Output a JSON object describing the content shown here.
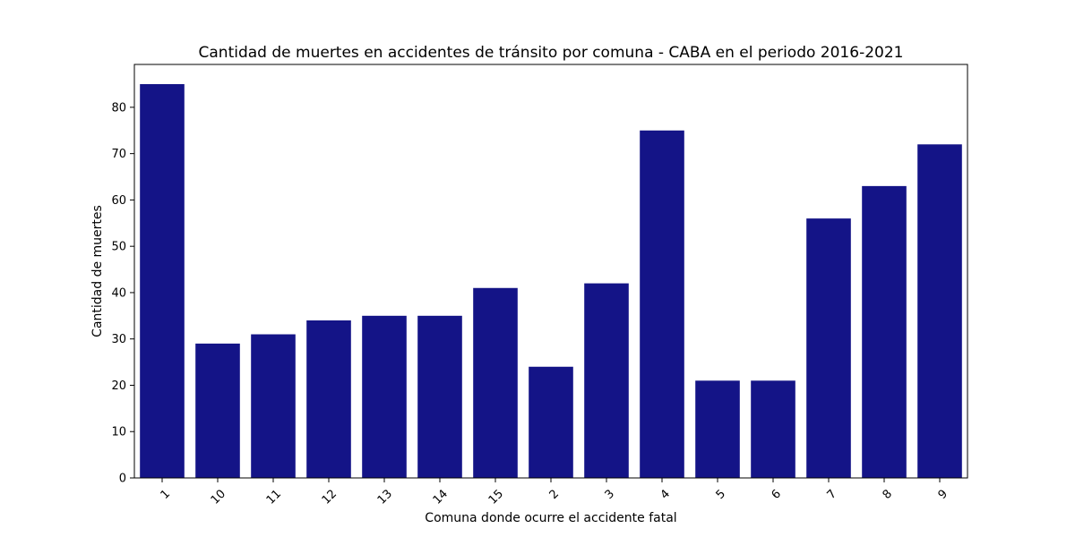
{
  "chart_data": {
    "type": "bar",
    "title": "Cantidad de muertes en accidentes de tránsito por comuna - CABA en el periodo 2016-2021",
    "xlabel": "Comuna donde ocurre el accidente fatal",
    "ylabel": "Cantidad de muertes",
    "categories": [
      "1",
      "10",
      "11",
      "12",
      "13",
      "14",
      "15",
      "2",
      "3",
      "4",
      "5",
      "6",
      "7",
      "8",
      "9"
    ],
    "values": [
      85,
      29,
      31,
      34,
      35,
      35,
      41,
      24,
      42,
      75,
      21,
      21,
      56,
      63,
      72
    ],
    "ylim": [
      0,
      89.25
    ],
    "yticks": [
      0,
      10,
      20,
      30,
      40,
      50,
      60,
      70,
      80
    ],
    "bar_color": "#141487",
    "grid": false,
    "legend": "none"
  }
}
